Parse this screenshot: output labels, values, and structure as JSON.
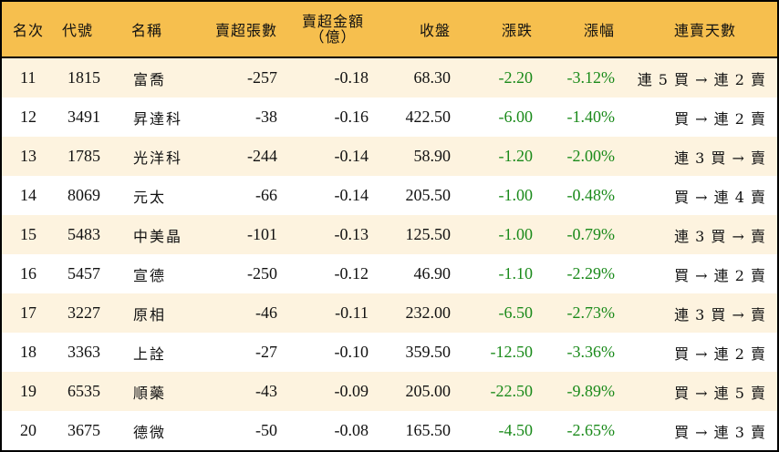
{
  "colors": {
    "header_bg": "#F6BF4E",
    "alt_row_bg": "#FDF3DF",
    "down": "#1a8a1a",
    "border": "#000000"
  },
  "header": {
    "rank": "名次",
    "code": "代號",
    "name": "名稱",
    "net_sell_lots": "賣超張數",
    "net_sell_amount_l1": "賣超金額",
    "net_sell_amount_l2": "（億）",
    "close": "收盤",
    "change": "漲跌",
    "change_pct": "漲幅",
    "streak": "連賣天數"
  },
  "rows": [
    {
      "rank": "11",
      "code": "1815",
      "name": "富喬",
      "lots": "-257",
      "amount": "-0.18",
      "close": "68.30",
      "change": "-2.20",
      "pct": "-3.12%",
      "streak": "連 5 買 → 連 2 賣"
    },
    {
      "rank": "12",
      "code": "3491",
      "name": "昇達科",
      "lots": "-38",
      "amount": "-0.16",
      "close": "422.50",
      "change": "-6.00",
      "pct": "-1.40%",
      "streak": "買 → 連 2 賣"
    },
    {
      "rank": "13",
      "code": "1785",
      "name": "光洋科",
      "lots": "-244",
      "amount": "-0.14",
      "close": "58.90",
      "change": "-1.20",
      "pct": "-2.00%",
      "streak": "連 3 買 → 賣"
    },
    {
      "rank": "14",
      "code": "8069",
      "name": "元太",
      "lots": "-66",
      "amount": "-0.14",
      "close": "205.50",
      "change": "-1.00",
      "pct": "-0.48%",
      "streak": "買 → 連 4 賣"
    },
    {
      "rank": "15",
      "code": "5483",
      "name": "中美晶",
      "lots": "-101",
      "amount": "-0.13",
      "close": "125.50",
      "change": "-1.00",
      "pct": "-0.79%",
      "streak": "連 3 買 → 賣"
    },
    {
      "rank": "16",
      "code": "5457",
      "name": "宣德",
      "lots": "-250",
      "amount": "-0.12",
      "close": "46.90",
      "change": "-1.10",
      "pct": "-2.29%",
      "streak": "買 → 連 2 賣"
    },
    {
      "rank": "17",
      "code": "3227",
      "name": "原相",
      "lots": "-46",
      "amount": "-0.11",
      "close": "232.00",
      "change": "-6.50",
      "pct": "-2.73%",
      "streak": "連 3 買 → 賣"
    },
    {
      "rank": "18",
      "code": "3363",
      "name": "上詮",
      "lots": "-27",
      "amount": "-0.10",
      "close": "359.50",
      "change": "-12.50",
      "pct": "-3.36%",
      "streak": "買 → 連 2 賣"
    },
    {
      "rank": "19",
      "code": "6535",
      "name": "順藥",
      "lots": "-43",
      "amount": "-0.09",
      "close": "205.00",
      "change": "-22.50",
      "pct": "-9.89%",
      "streak": "買 → 連 5 賣"
    },
    {
      "rank": "20",
      "code": "3675",
      "name": "德微",
      "lots": "-50",
      "amount": "-0.08",
      "close": "165.50",
      "change": "-4.50",
      "pct": "-2.65%",
      "streak": "買 → 連 3 賣"
    }
  ]
}
